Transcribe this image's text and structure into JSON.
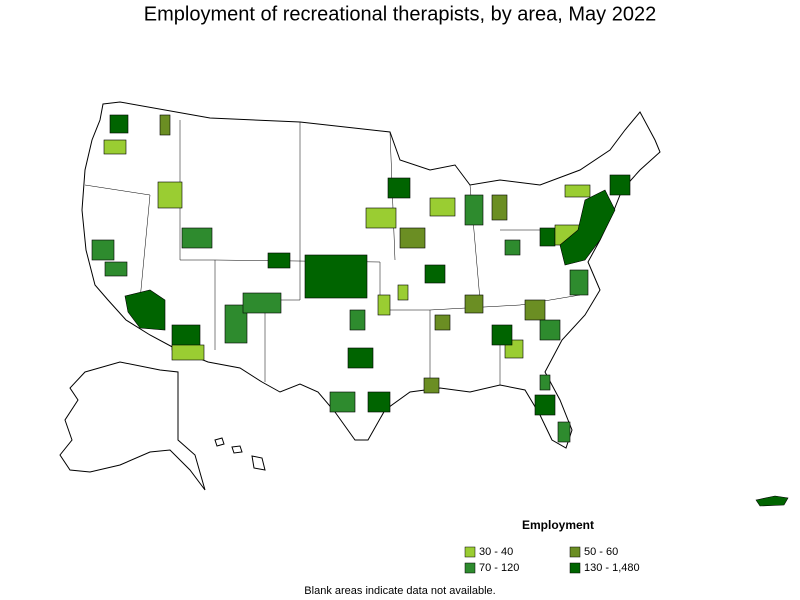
{
  "title": "Employment of recreational therapists, by area, May 2022",
  "legend": {
    "title": "Employment",
    "items": [
      {
        "label": "30 - 40",
        "color": "#9acd32"
      },
      {
        "label": "50 - 60",
        "color": "#6b8e23"
      },
      {
        "label": "70 - 120",
        "color": "#2e8b2e"
      },
      {
        "label": "130 - 1,480",
        "color": "#006400"
      }
    ]
  },
  "note": "Blank areas indicate data not available."
}
